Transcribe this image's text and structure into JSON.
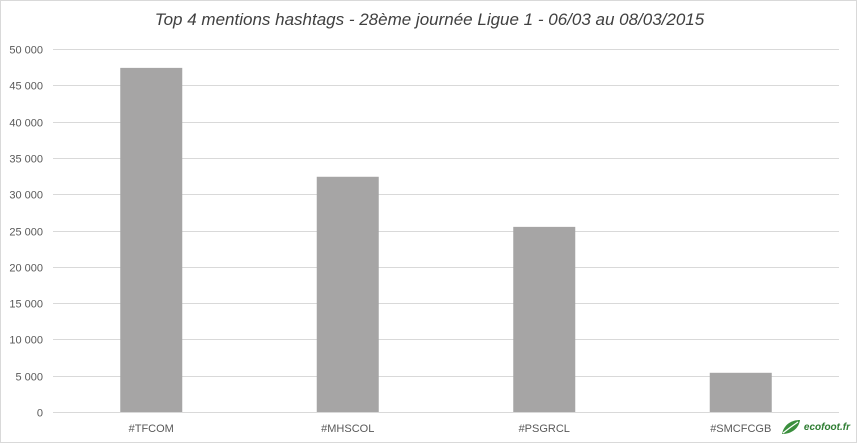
{
  "chart_data": {
    "type": "bar",
    "title": "Top 4 mentions hashtags - 28ème journée Ligue 1 - 06/03 au 08/03/2015",
    "xlabel": "",
    "ylabel": "",
    "categories": [
      "#TFCOM",
      "#MHSCOL",
      "#PSGRCL",
      "#SMCFCGB"
    ],
    "values": [
      47400,
      32400,
      25500,
      5400
    ],
    "ylim": [
      0,
      50000
    ],
    "yticks": [
      0,
      5000,
      10000,
      15000,
      20000,
      25000,
      30000,
      35000,
      40000,
      45000,
      50000
    ],
    "ytick_labels": [
      "0",
      "5 000",
      "10 000",
      "15 000",
      "20 000",
      "25 000",
      "30 000",
      "35 000",
      "40 000",
      "45 000",
      "50 000"
    ],
    "grid": true,
    "bar_color": "#a6a5a5",
    "grid_color": "#d9d9d9"
  },
  "logo": {
    "text": "ecofoot.fr",
    "icon": "leaf-icon",
    "color": "#2e7d32"
  }
}
